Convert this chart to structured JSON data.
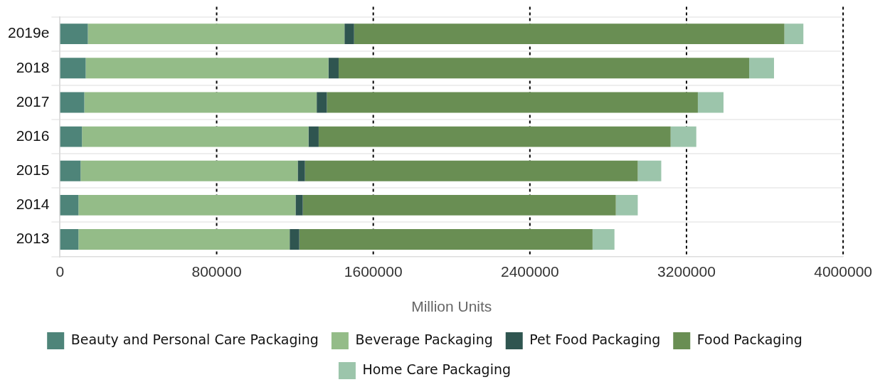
{
  "chart_data": {
    "type": "bar",
    "orientation": "horizontal",
    "stacked": true,
    "xlabel": "Million Units",
    "categories": [
      "2019e",
      "2018",
      "2017",
      "2016",
      "2015",
      "2014",
      "2013"
    ],
    "series": [
      {
        "name": "Beauty and Personal Care Packaging",
        "color": "#4e8479",
        "values": [
          142000,
          131000,
          124000,
          112000,
          105000,
          94000,
          94000
        ]
      },
      {
        "name": "Beverage Packaging",
        "color": "#94bc88",
        "values": [
          1311000,
          1240000,
          1187000,
          1157000,
          1109000,
          1109000,
          1079000
        ]
      },
      {
        "name": "Pet Food Packaging",
        "color": "#2f5550",
        "values": [
          49000,
          52000,
          52000,
          52000,
          37000,
          37000,
          49000
        ]
      },
      {
        "name": "Food Packaging",
        "color": "#698e53",
        "values": [
          2198000,
          2097000,
          1895000,
          1798000,
          1700000,
          1599000,
          1498000
        ]
      },
      {
        "name": "Home Care Packaging",
        "color": "#9cc5ab",
        "values": [
          97000,
          127000,
          131000,
          131000,
          120000,
          112000,
          112000
        ]
      }
    ],
    "xlim": [
      0,
      4000000
    ],
    "xticks": [
      0,
      800000,
      1600000,
      2400000,
      3200000,
      4000000
    ],
    "grid": true,
    "legend": "bottom"
  }
}
